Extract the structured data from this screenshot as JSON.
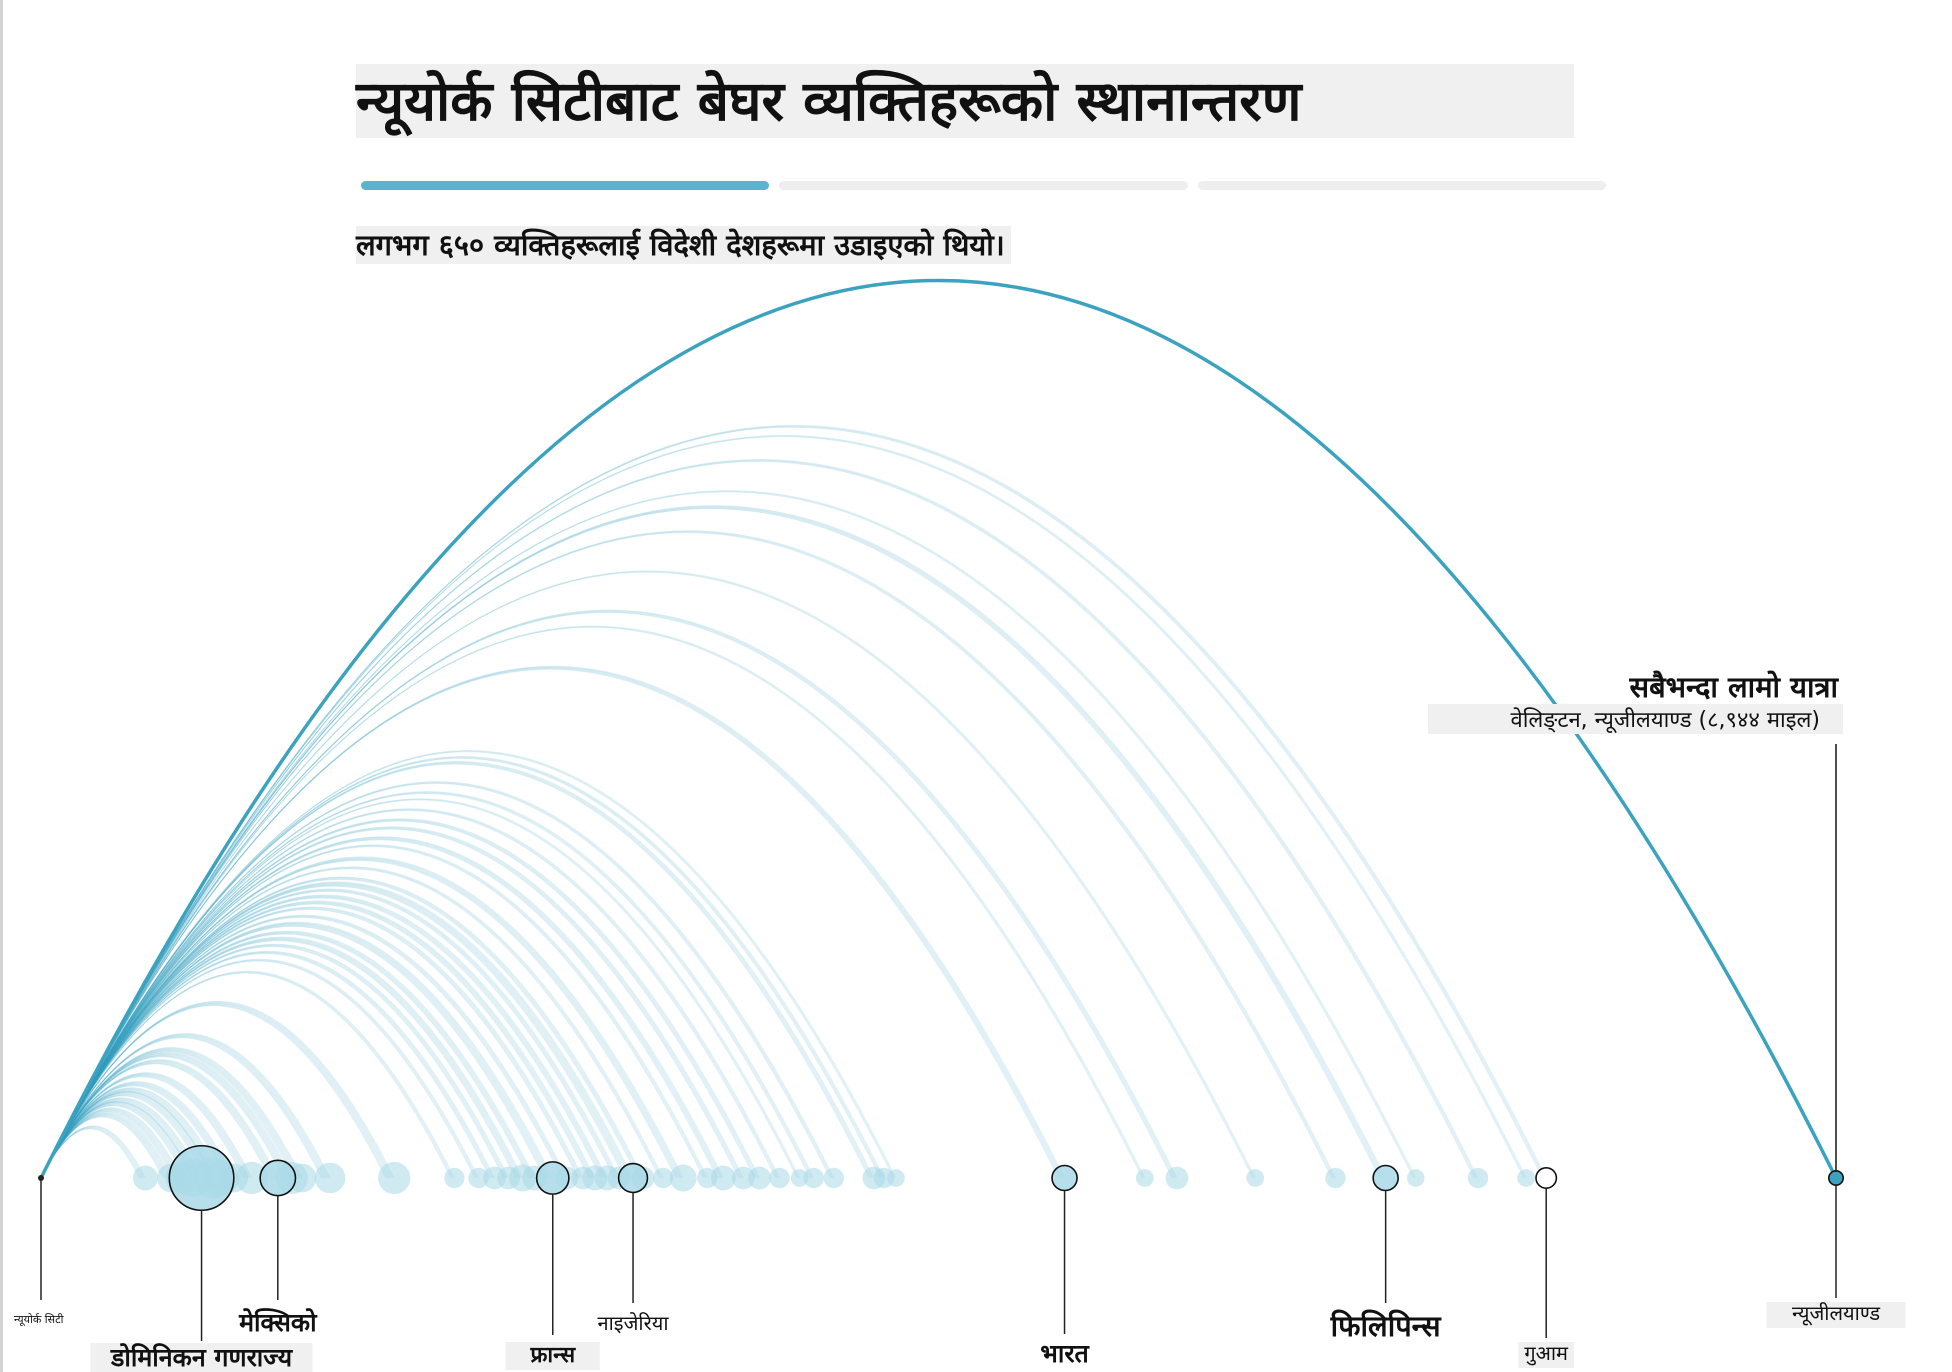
{
  "header": {
    "title": "न्यूयोर्क सिटीबाट बेघर व्यक्तिहरूको स्थानान्तरण",
    "subtitle": "लगभग ६५० व्यक्तिहरूलाई विदेशी देशहरूमा उडाइएको थियो।"
  },
  "progress": {
    "steps": 3,
    "active_step": 1,
    "active_color": "#5ab4cc",
    "inactive_color": "#eeeeee"
  },
  "colors": {
    "arc": "#3ba3bf",
    "dot": "#a9d9e7",
    "line": "#222222",
    "label_bg": "#f0f0f0"
  },
  "chart_data": {
    "type": "arc",
    "origin_label": "न्यूयोर्क सिटी",
    "distance_unit": "माइल",
    "x_range_miles": [
      0,
      9600
    ],
    "annotation": {
      "title": "सबैभन्दा लामो यात्रा",
      "detail": "वेलिङ्टन, न्यूजीलयाण्ड (८,९४४ माइल)",
      "distance": 8944
    },
    "labeled_destinations": [
      {
        "name": "डोमिनिकन गणराज्य",
        "distance": 800,
        "count": 40
      },
      {
        "name": "मेक्सिको",
        "distance": 1180,
        "count": 12
      },
      {
        "name": "फ्रान्स",
        "distance": 2550,
        "count": 10
      },
      {
        "name": "नाइजेरिया",
        "distance": 2950,
        "count": 8
      },
      {
        "name": "भारत",
        "distance": 5100,
        "count": 6
      },
      {
        "name": "फिलिपिन्स",
        "distance": 6700,
        "count": 6
      },
      {
        "name": "गुआम",
        "distance": 7500,
        "count": 4
      },
      {
        "name": "न्यूजीलयाण्ड",
        "distance": 8944,
        "count": 2
      }
    ],
    "other_destinations": [
      {
        "distance": 520,
        "count": 6
      },
      {
        "distance": 650,
        "count": 8
      },
      {
        "distance": 700,
        "count": 10
      },
      {
        "distance": 760,
        "count": 14
      },
      {
        "distance": 860,
        "count": 16
      },
      {
        "distance": 900,
        "count": 12
      },
      {
        "distance": 960,
        "count": 8
      },
      {
        "distance": 1050,
        "count": 10
      },
      {
        "distance": 1250,
        "count": 10
      },
      {
        "distance": 1300,
        "count": 8
      },
      {
        "distance": 1440,
        "count": 9
      },
      {
        "distance": 1760,
        "count": 10
      },
      {
        "distance": 2060,
        "count": 4
      },
      {
        "distance": 2180,
        "count": 4
      },
      {
        "distance": 2260,
        "count": 5
      },
      {
        "distance": 2330,
        "count": 5
      },
      {
        "distance": 2400,
        "count": 7
      },
      {
        "distance": 2460,
        "count": 6
      },
      {
        "distance": 2620,
        "count": 5
      },
      {
        "distance": 2700,
        "count": 5
      },
      {
        "distance": 2760,
        "count": 6
      },
      {
        "distance": 2820,
        "count": 6
      },
      {
        "distance": 2880,
        "count": 5
      },
      {
        "distance": 3000,
        "count": 5
      },
      {
        "distance": 3100,
        "count": 4
      },
      {
        "distance": 3200,
        "count": 7
      },
      {
        "distance": 3320,
        "count": 4
      },
      {
        "distance": 3400,
        "count": 6
      },
      {
        "distance": 3500,
        "count": 5
      },
      {
        "distance": 3580,
        "count": 5
      },
      {
        "distance": 3680,
        "count": 4
      },
      {
        "distance": 3780,
        "count": 3
      },
      {
        "distance": 3850,
        "count": 4
      },
      {
        "distance": 3950,
        "count": 4
      },
      {
        "distance": 4150,
        "count": 5
      },
      {
        "distance": 4200,
        "count": 4
      },
      {
        "distance": 4260,
        "count": 3
      },
      {
        "distance": 5500,
        "count": 3
      },
      {
        "distance": 5660,
        "count": 5
      },
      {
        "distance": 6050,
        "count": 3
      },
      {
        "distance": 6450,
        "count": 4
      },
      {
        "distance": 6850,
        "count": 3
      },
      {
        "distance": 7160,
        "count": 4
      },
      {
        "distance": 7400,
        "count": 3
      }
    ]
  }
}
